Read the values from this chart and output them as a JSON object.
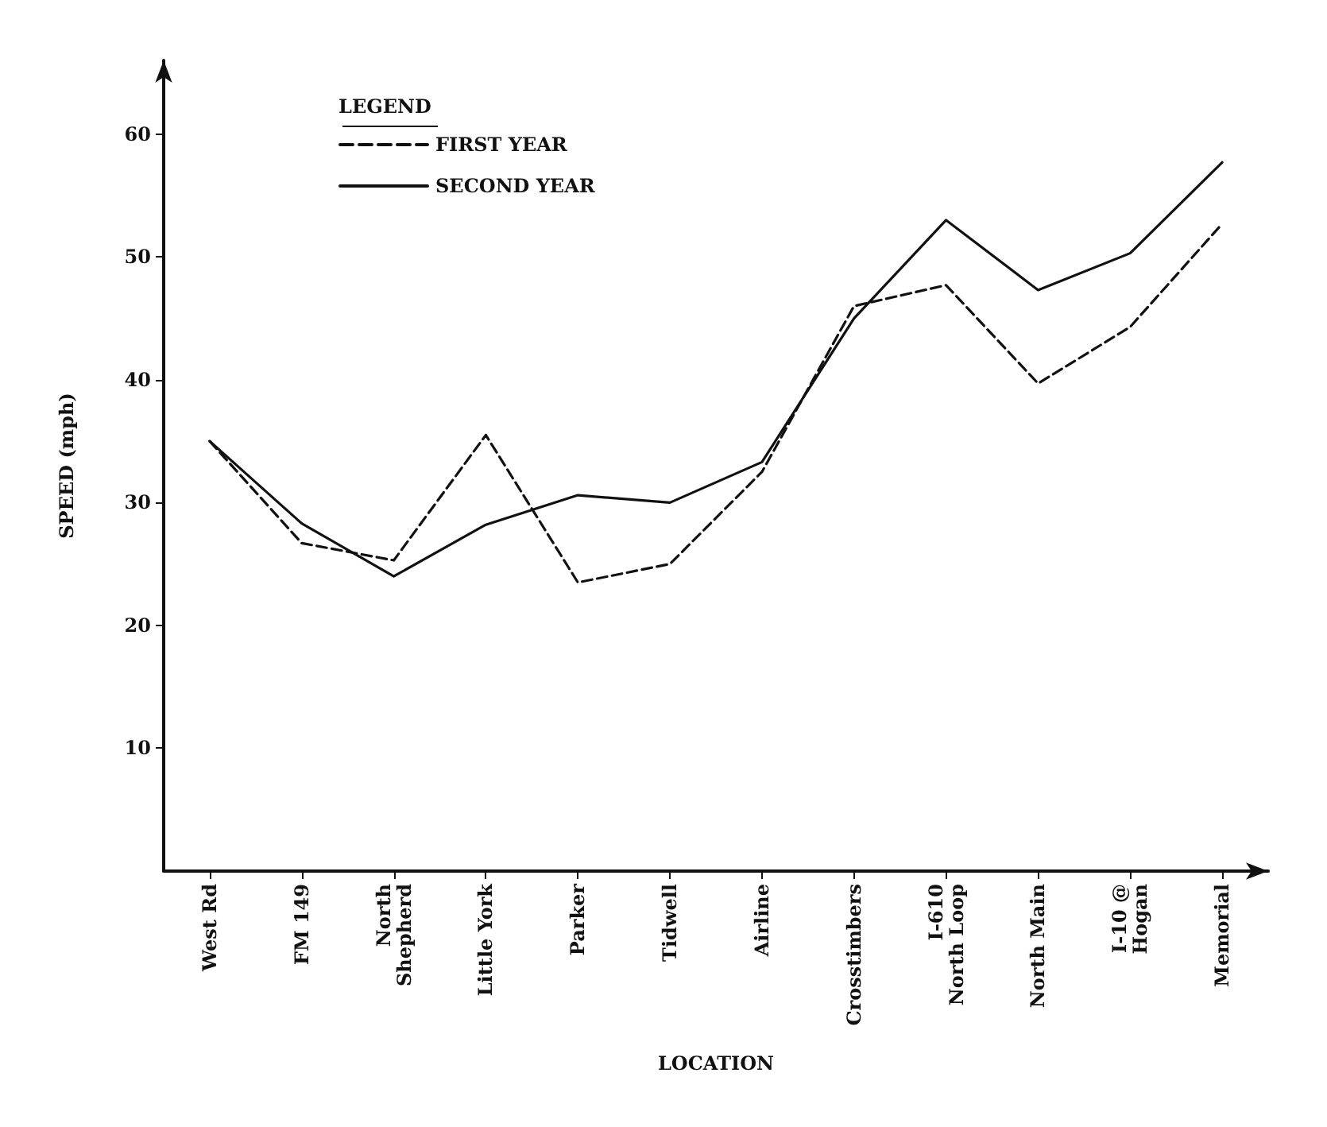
{
  "chart_data": {
    "type": "line",
    "xlabel": "LOCATION",
    "ylabel": "SPEED (mph)",
    "legend_title": "LEGEND",
    "categories": [
      "West Rd",
      "FM 149",
      "North\nShepherd",
      "Little York",
      "Parker",
      "Tidwell",
      "Airline",
      "Crosstimbers",
      "I-610\nNorth Loop",
      "North Main",
      "I-10 @\nHogan",
      "Memorial"
    ],
    "series": [
      {
        "name": "FIRST YEAR",
        "color": "#111111",
        "line_style": "dashed",
        "values": [
          35,
          26.7,
          25.3,
          35.5,
          23.5,
          25,
          32.5,
          46,
          47.7,
          39.7,
          44.3,
          52.7
        ]
      },
      {
        "name": "SECOND YEAR",
        "color": "#111111",
        "line_style": "solid",
        "values": [
          35,
          28.3,
          24,
          28.2,
          30.6,
          30,
          33.3,
          45,
          53,
          47.3,
          50.3,
          57.7
        ]
      }
    ],
    "ylim": [
      0,
      66
    ],
    "yticks": [
      10,
      20,
      30,
      40,
      50,
      60
    ],
    "grid": false,
    "legend": "top left",
    "marker": "none"
  }
}
